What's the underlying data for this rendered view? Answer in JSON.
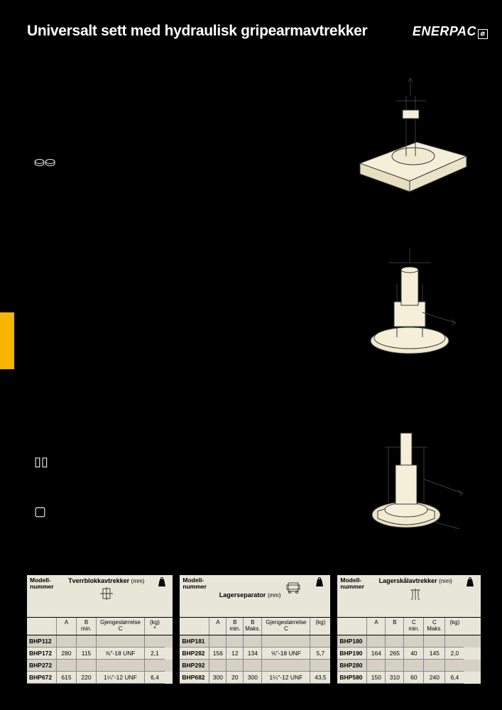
{
  "header": {
    "title": "Universalt sett med hydraulisk gripearmavtrekker",
    "logo": "ENERPAC",
    "logo_symbol": "⌀"
  },
  "icons": {
    "sym1": "⛀⛀",
    "sym2": "▯▯",
    "sym3": "▢"
  },
  "illustrations": {
    "bg_color": "#f5eed8",
    "stroke_color": "#3a3a3a"
  },
  "yellow_tab_color": "#f7b500",
  "tables": {
    "bg_color": "#e8e5d9",
    "shaded_color": "#d5d2c5",
    "header_model": "Modell-\nnummer",
    "weight_unit": "(kg)",
    "t1": {
      "title": "Tverrblokkavtrekker",
      "unit": "(mm)",
      "columns": [
        "A",
        "B\nmin.",
        "Gjengestørrelse\nC",
        "(kg)\n*"
      ],
      "rows": [
        {
          "model": "BHP112",
          "vals": [
            "",
            "",
            "",
            ""
          ]
        },
        {
          "model": "BHP172",
          "vals": [
            "280",
            "115",
            "⅝\"-18 UNF",
            "2,1"
          ]
        },
        {
          "model": "BHP272",
          "vals": [
            "",
            "",
            "",
            ""
          ]
        },
        {
          "model": "BHP672",
          "vals": [
            "615",
            "220",
            "1¼\"-12 UNF",
            "6,4"
          ]
        }
      ]
    },
    "t2": {
      "title": "Lagerseparator",
      "unit": "(mm)",
      "columns": [
        "A",
        "B\nmin.",
        "B\nMaks.",
        "Gjengestørrelse\nC",
        "(kg)"
      ],
      "rows": [
        {
          "model": "BHP181",
          "vals": [
            "",
            "",
            "",
            "",
            ""
          ]
        },
        {
          "model": "BHP282",
          "vals": [
            "156",
            "12",
            "134",
            "⅝\"-18 UNF",
            "5,7"
          ]
        },
        {
          "model": "BHP292",
          "vals": [
            "",
            "",
            "",
            "",
            ""
          ]
        },
        {
          "model": "BHP682",
          "vals": [
            "300",
            "20",
            "300",
            "1¼\"-12 UNF",
            "43,5"
          ]
        }
      ]
    },
    "t3": {
      "title": "Lagerskålavtrekker",
      "unit": "(mm)",
      "columns": [
        "A",
        "B",
        "C\nmin.",
        "C\nMaks.",
        "(kg)"
      ],
      "rows": [
        {
          "model": "BHP180",
          "vals": [
            "",
            "",
            "",
            "",
            ""
          ]
        },
        {
          "model": "BHP190",
          "vals": [
            "164",
            "265",
            "40",
            "145",
            "2,0"
          ]
        },
        {
          "model": "BHP280",
          "vals": [
            "",
            "",
            "",
            "",
            ""
          ]
        },
        {
          "model": "BHP580",
          "vals": [
            "150",
            "310",
            "60",
            "240",
            "6,4"
          ]
        }
      ]
    }
  }
}
